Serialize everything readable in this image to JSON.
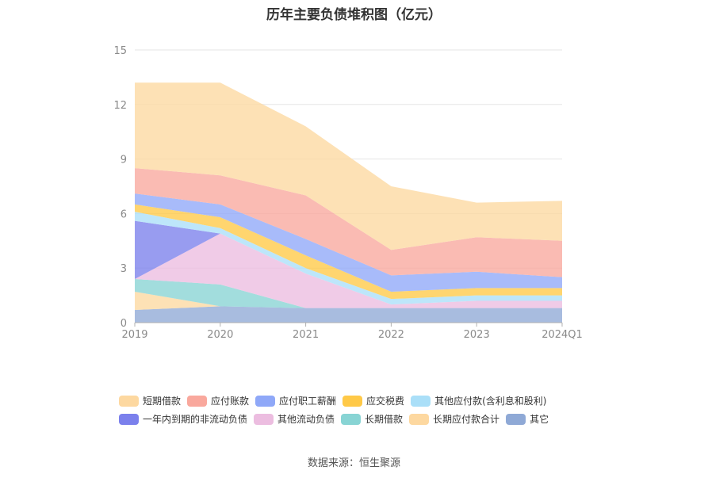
{
  "chart_data": {
    "type": "area",
    "stacked": true,
    "title": "历年主要负债堆积图（亿元）",
    "categories": [
      "2019",
      "2020",
      "2021",
      "2022",
      "2023",
      "2024Q1"
    ],
    "ylim": [
      0,
      15
    ],
    "yticks": [
      0,
      3,
      6,
      9,
      12,
      15
    ],
    "grid": true,
    "legend_position": "bottom",
    "series": [
      {
        "name": "其它",
        "color": "#8fa9d6",
        "values": [
          0.7,
          0.9,
          0.8,
          0.8,
          0.8,
          0.8
        ]
      },
      {
        "name": "长期应付款合计",
        "color": "#fdd8a0",
        "values": [
          1.0,
          0.0,
          0.0,
          0.0,
          0.0,
          0.0
        ]
      },
      {
        "name": "长期借款",
        "color": "#88d4d4",
        "values": [
          0.7,
          1.2,
          0.0,
          0.0,
          0.0,
          0.0
        ]
      },
      {
        "name": "其他流动负债",
        "color": "#ecbde0",
        "values": [
          0.0,
          2.8,
          1.9,
          0.2,
          0.4,
          0.4
        ]
      },
      {
        "name": "一年内到期的非流动负债",
        "color": "#7b80ec",
        "values": [
          3.2,
          0.0,
          0.0,
          0.0,
          0.0,
          0.0
        ]
      },
      {
        "name": "其他应付款(含利息和股利)",
        "color": "#aadff8",
        "values": [
          0.5,
          0.3,
          0.3,
          0.3,
          0.3,
          0.3
        ]
      },
      {
        "name": "应交税费",
        "color": "#ffc947",
        "values": [
          0.4,
          0.6,
          0.7,
          0.4,
          0.4,
          0.4
        ]
      },
      {
        "name": "应付职工薪酬",
        "color": "#8fa8f8",
        "values": [
          0.6,
          0.7,
          0.9,
          0.9,
          0.9,
          0.6
        ]
      },
      {
        "name": "应付账款",
        "color": "#f9a89d",
        "values": [
          1.4,
          1.6,
          2.4,
          1.4,
          1.9,
          2.0
        ]
      },
      {
        "name": "短期借款",
        "color": "#fdd8a0",
        "values": [
          4.7,
          5.1,
          3.8,
          3.5,
          1.9,
          2.2
        ]
      }
    ],
    "legend_order": [
      "短期借款",
      "应付账款",
      "应付职工薪酬",
      "应交税费",
      "其他应付款(含利息和股利)",
      "一年内到期的非流动负债",
      "其他流动负债",
      "长期借款",
      "长期应付款合计",
      "其它"
    ]
  },
  "source_text": "数据来源：恒生聚源"
}
